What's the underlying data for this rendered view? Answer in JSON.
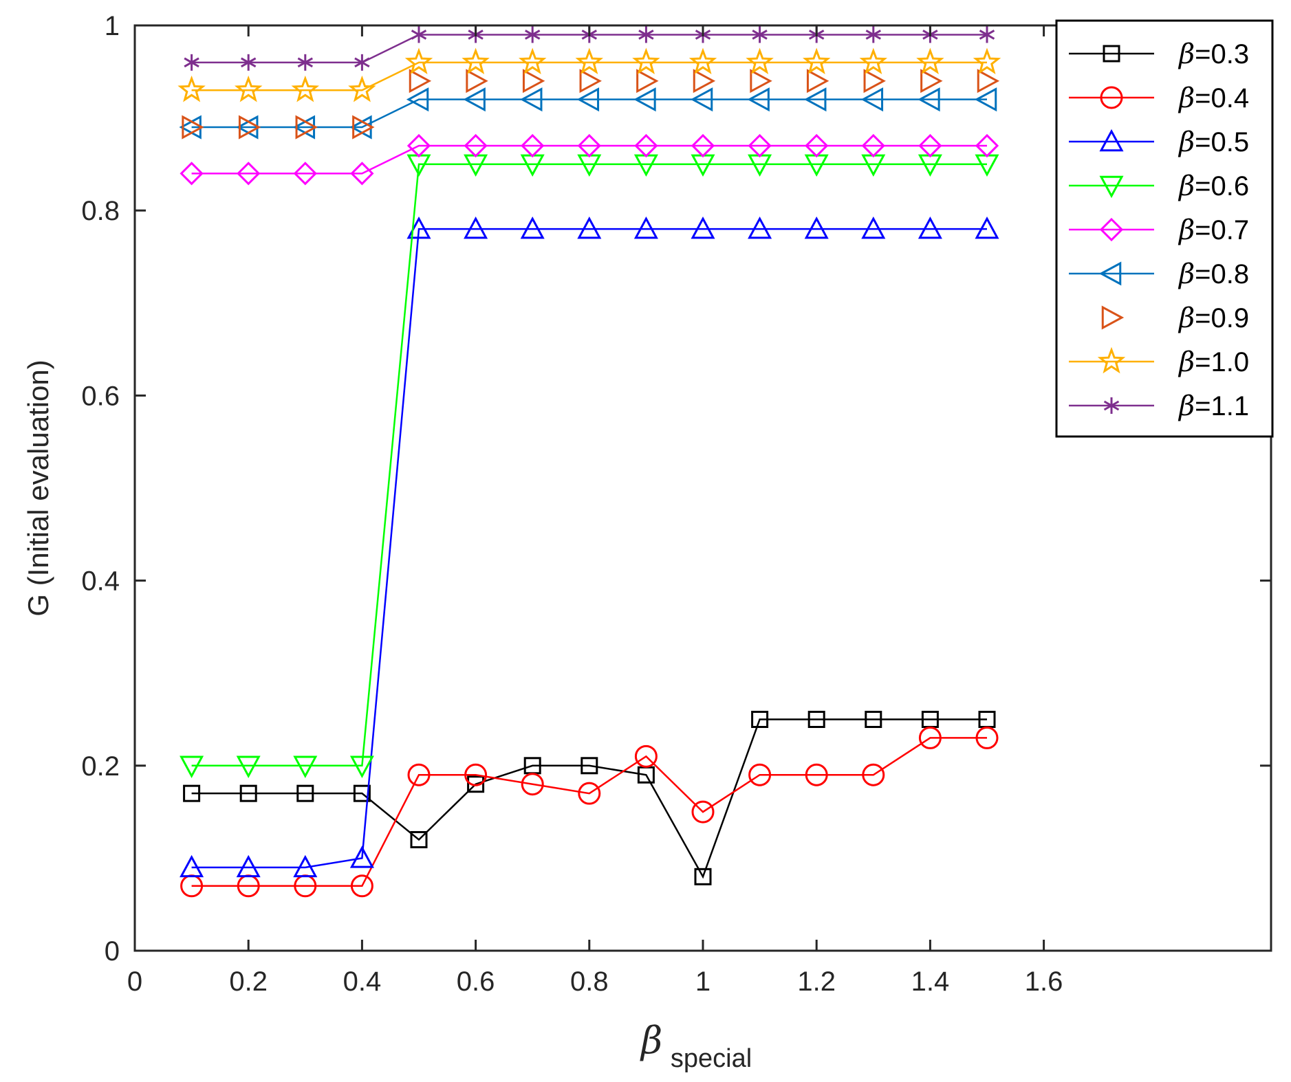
{
  "chart_data": {
    "type": "line",
    "title": "",
    "xlabel": "special",
    "xlabel_symbol": "β",
    "ylabel": "G (Initial evaluation)",
    "xlim": [
      0,
      2
    ],
    "ylim": [
      0,
      1
    ],
    "xticks": [
      0,
      0.2,
      0.4,
      0.6,
      0.8,
      1,
      1.2,
      1.4,
      1.6
    ],
    "xtick_labels": [
      "0",
      "0.2",
      "0.4",
      "0.6",
      "0.8",
      "1",
      "1.2",
      "1.4",
      "1.6"
    ],
    "yticks": [
      0,
      0.2,
      0.4,
      0.6,
      0.8,
      1
    ],
    "ytick_labels": [
      "0",
      "0.2",
      "0.4",
      "0.6",
      "0.8",
      "1"
    ],
    "grid": false,
    "legend_position": "top-right",
    "x": [
      0.1,
      0.2,
      0.3,
      0.4,
      0.5,
      0.6,
      0.7,
      0.8,
      0.9,
      1.0,
      1.1,
      1.2,
      1.3,
      1.4,
      1.5
    ],
    "series": [
      {
        "name": "β=0.3",
        "prefix": "β",
        "suffix": "=0.3",
        "color": "#000000",
        "marker": "square",
        "line": true,
        "values": [
          0.17,
          0.17,
          0.17,
          0.17,
          0.12,
          0.18,
          0.2,
          0.2,
          0.19,
          0.08,
          0.25,
          0.25,
          0.25,
          0.25,
          0.25
        ]
      },
      {
        "name": "β=0.4",
        "prefix": "β",
        "suffix": "=0.4",
        "color": "#ff0000",
        "marker": "circle",
        "line": true,
        "values": [
          0.07,
          0.07,
          0.07,
          0.07,
          0.19,
          0.19,
          0.18,
          0.17,
          0.21,
          0.15,
          0.19,
          0.19,
          0.19,
          0.23,
          0.23
        ]
      },
      {
        "name": "β=0.5",
        "prefix": "β",
        "suffix": "=0.5",
        "color": "#0000ff",
        "marker": "triangle-up",
        "line": true,
        "values": [
          0.09,
          0.09,
          0.09,
          0.1,
          0.78,
          0.78,
          0.78,
          0.78,
          0.78,
          0.78,
          0.78,
          0.78,
          0.78,
          0.78,
          0.78
        ]
      },
      {
        "name": "β=0.6",
        "prefix": "β",
        "suffix": "=0.6",
        "color": "#00ff00",
        "marker": "triangle-down",
        "line": true,
        "values": [
          0.2,
          0.2,
          0.2,
          0.2,
          0.85,
          0.85,
          0.85,
          0.85,
          0.85,
          0.85,
          0.85,
          0.85,
          0.85,
          0.85,
          0.85
        ]
      },
      {
        "name": "β=0.7",
        "prefix": "β",
        "suffix": "=0.7",
        "color": "#ff00ff",
        "marker": "diamond",
        "line": true,
        "values": [
          0.84,
          0.84,
          0.84,
          0.84,
          0.87,
          0.87,
          0.87,
          0.87,
          0.87,
          0.87,
          0.87,
          0.87,
          0.87,
          0.87,
          0.87
        ]
      },
      {
        "name": "β=0.8",
        "prefix": "β",
        "suffix": "=0.8",
        "color": "#0072bd",
        "marker": "triangle-left",
        "line": true,
        "values": [
          0.89,
          0.89,
          0.89,
          0.89,
          0.92,
          0.92,
          0.92,
          0.92,
          0.92,
          0.92,
          0.92,
          0.92,
          0.92,
          0.92,
          0.92
        ]
      },
      {
        "name": "β=0.9",
        "prefix": "β",
        "suffix": "=0.9",
        "color": "#d95319",
        "marker": "triangle-right",
        "line": false,
        "values": [
          0.89,
          0.89,
          0.89,
          0.89,
          0.94,
          0.94,
          0.94,
          0.94,
          0.94,
          0.94,
          0.94,
          0.94,
          0.94,
          0.94,
          0.94
        ]
      },
      {
        "name": "β=1.0",
        "prefix": "β",
        "suffix": "=1.0",
        "color": "#ffb000",
        "marker": "pentagram",
        "line": true,
        "values": [
          0.93,
          0.93,
          0.93,
          0.93,
          0.96,
          0.96,
          0.96,
          0.96,
          0.96,
          0.96,
          0.96,
          0.96,
          0.96,
          0.96,
          0.96
        ]
      },
      {
        "name": "β=1.1",
        "prefix": "β",
        "suffix": "=1.1",
        "color": "#7e2f8e",
        "marker": "asterisk",
        "line": true,
        "values": [
          0.96,
          0.96,
          0.96,
          0.96,
          0.99,
          0.99,
          0.99,
          0.99,
          0.99,
          0.99,
          0.99,
          0.99,
          0.99,
          0.99,
          0.99
        ]
      }
    ]
  }
}
